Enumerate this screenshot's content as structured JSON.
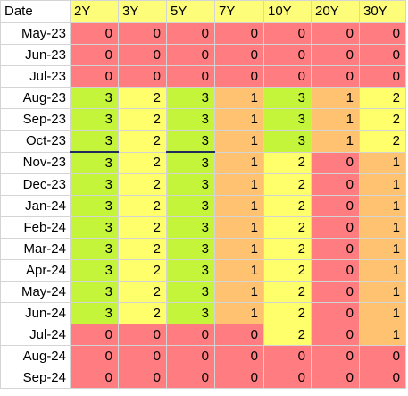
{
  "sheet": {
    "headers": [
      "Date",
      "2Y",
      "3Y",
      "5Y",
      "7Y",
      "10Y",
      "20Y",
      "30Y"
    ],
    "colors": {
      "zero": "#ff7c80",
      "one": "#ffc271",
      "two": "#ffff6b",
      "three": "#c4f53a",
      "header_fill": "#fdfd7a",
      "underline": "#1f2d5c"
    },
    "rows": [
      {
        "date": "May-23",
        "values": [
          0,
          0,
          0,
          0,
          0,
          0,
          0
        ]
      },
      {
        "date": "Jun-23",
        "values": [
          0,
          0,
          0,
          0,
          0,
          0,
          0
        ]
      },
      {
        "date": "Jul-23",
        "values": [
          0,
          0,
          0,
          0,
          0,
          0,
          0
        ]
      },
      {
        "date": "Aug-23",
        "values": [
          3,
          2,
          3,
          1,
          3,
          1,
          2
        ]
      },
      {
        "date": "Sep-23",
        "values": [
          3,
          2,
          3,
          1,
          3,
          1,
          2
        ]
      },
      {
        "date": "Oct-23",
        "values": [
          3,
          2,
          3,
          1,
          3,
          1,
          2
        ]
      },
      {
        "date": "Nov-23",
        "values": [
          3,
          2,
          3,
          1,
          2,
          0,
          1
        ]
      },
      {
        "date": "Dec-23",
        "values": [
          3,
          2,
          3,
          1,
          2,
          0,
          1
        ]
      },
      {
        "date": "Jan-24",
        "values": [
          3,
          2,
          3,
          1,
          2,
          0,
          1
        ]
      },
      {
        "date": "Feb-24",
        "values": [
          3,
          2,
          3,
          1,
          2,
          0,
          1
        ]
      },
      {
        "date": "Mar-24",
        "values": [
          3,
          2,
          3,
          1,
          2,
          0,
          1
        ]
      },
      {
        "date": "Apr-24",
        "values": [
          3,
          2,
          3,
          1,
          2,
          0,
          1
        ]
      },
      {
        "date": "May-24",
        "values": [
          3,
          2,
          3,
          1,
          2,
          0,
          1
        ]
      },
      {
        "date": "Jun-24",
        "values": [
          3,
          2,
          3,
          1,
          2,
          0,
          1
        ]
      },
      {
        "date": "Jul-24",
        "values": [
          0,
          0,
          0,
          0,
          2,
          0,
          1
        ]
      },
      {
        "date": "Aug-24",
        "values": [
          0,
          0,
          0,
          0,
          0,
          0,
          0
        ]
      },
      {
        "date": "Sep-24",
        "values": [
          0,
          0,
          0,
          0,
          0,
          0,
          0
        ]
      }
    ]
  }
}
